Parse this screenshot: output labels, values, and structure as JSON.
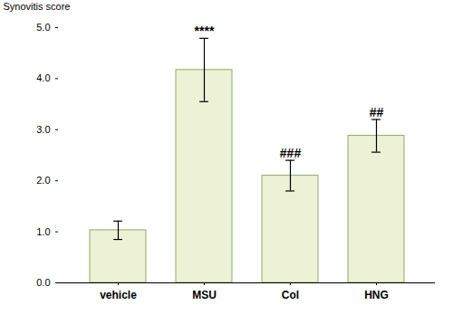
{
  "chart_data": {
    "type": "bar",
    "categories": [
      "vehicle",
      "MSU",
      "Col",
      "HNG"
    ],
    "values": [
      1.03,
      4.17,
      2.1,
      2.88
    ],
    "errors": [
      0.18,
      0.62,
      0.3,
      0.32
    ],
    "color": "#edf2d6",
    "ylabel": "Synovitis score",
    "ylim": [
      0,
      5
    ],
    "yticks": [
      0,
      1,
      2,
      3,
      4,
      5
    ],
    "grid": false,
    "annotations": [
      {
        "text": "****",
        "category": "MSU"
      },
      {
        "text": "###",
        "category": "Col"
      },
      {
        "text": "##",
        "category": "HNG"
      }
    ]
  }
}
